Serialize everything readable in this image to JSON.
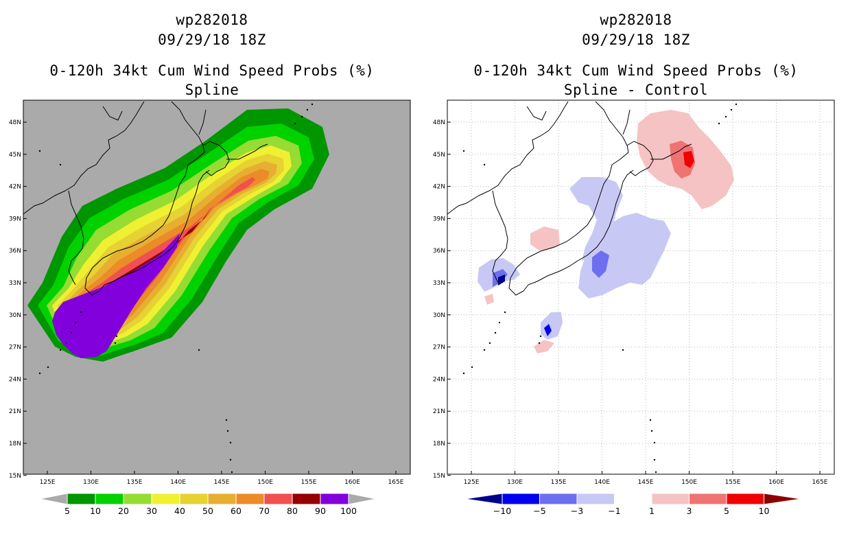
{
  "left_panel": {
    "title_line1": "wp282018",
    "title_line2": "09/29/18 18Z",
    "title_line3": "0-120h 34kt Cum Wind Speed Probs (%)",
    "title_line4": "Spline"
  },
  "right_panel": {
    "title_line1": "wp282018",
    "title_line2": "09/29/18 18Z",
    "title_line3": "0-120h 34kt Cum Wind Speed Probs (%)",
    "title_line4": "Spline - Control"
  },
  "axes": {
    "lat_labels": [
      "48N",
      "45N",
      "42N",
      "39N",
      "36N",
      "33N",
      "30N",
      "27N",
      "24N",
      "21N",
      "18N",
      "15N"
    ],
    "lon_labels": [
      "125E",
      "130E",
      "135E",
      "140E",
      "145E",
      "150E",
      "155E",
      "160E",
      "165E"
    ]
  },
  "left_colorbar": {
    "labels": [
      "5",
      "10",
      "20",
      "30",
      "40",
      "50",
      "60",
      "70",
      "80",
      "90",
      "100"
    ],
    "colors": [
      "#009600",
      "#00d200",
      "#96dc32",
      "#f0f032",
      "#e6d232",
      "#e6af32",
      "#eb8c28",
      "#f05050",
      "#960000",
      "#8200dc"
    ],
    "background_color": "#aaaaaa"
  },
  "right_colorbar": {
    "labels": [
      "-10",
      "-5",
      "-3",
      "-1",
      "1",
      "3",
      "5",
      "10"
    ],
    "colors": [
      "#00008c",
      "#0000f0",
      "#6e6ef0",
      "#c8c8f5",
      "#ffffff",
      "#f5c3c3",
      "#f07373",
      "#f00000",
      "#8c0000"
    ]
  }
}
